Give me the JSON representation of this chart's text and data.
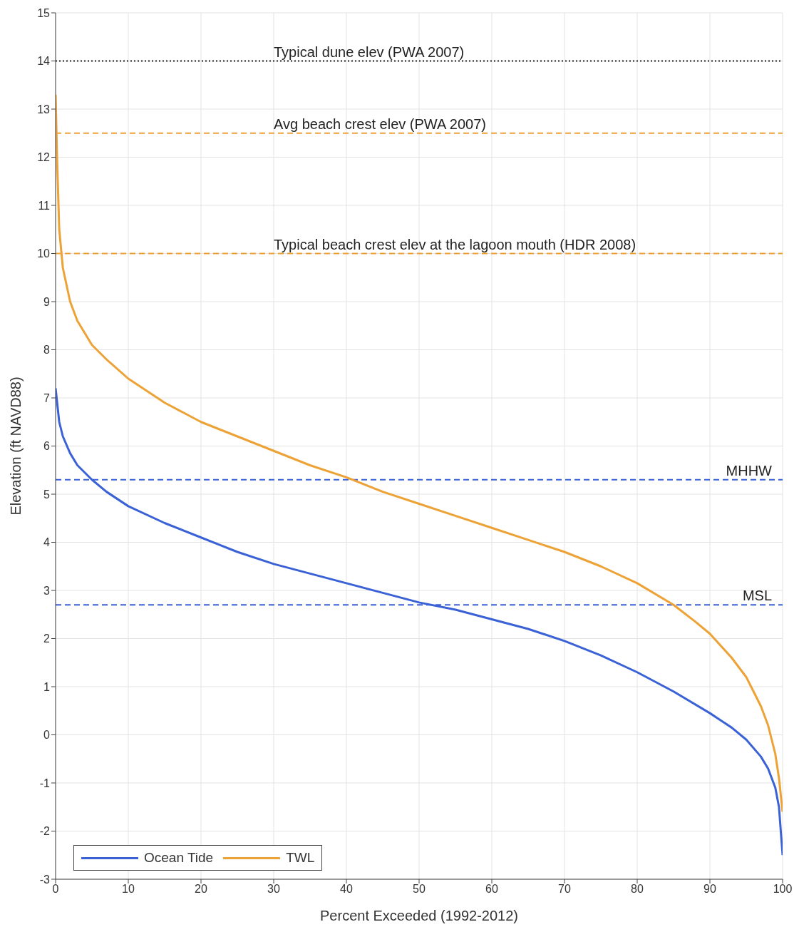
{
  "chart_data": {
    "type": "line",
    "xlabel": "Percent Exceeded (1992-2012)",
    "ylabel": "Elevation (ft NAVD88)",
    "xlim": [
      0,
      100
    ],
    "xticks": [
      0,
      10,
      20,
      30,
      40,
      50,
      60,
      70,
      80,
      90,
      100
    ],
    "ylim": [
      -3,
      15
    ],
    "yticks": [
      -3,
      -2,
      -1,
      0,
      1,
      2,
      3,
      4,
      5,
      6,
      7,
      8,
      9,
      10,
      11,
      12,
      13,
      14,
      15
    ],
    "grid": true,
    "legend": "bottom left",
    "marker": "none",
    "line_style": "solid",
    "series": [
      {
        "name": "Ocean Tide",
        "color": "#3a62d6",
        "x": [
          0,
          0.5,
          1,
          2,
          3,
          5,
          7,
          10,
          15,
          20,
          25,
          30,
          35,
          40,
          45,
          50,
          55,
          60,
          65,
          70,
          75,
          80,
          85,
          90,
          93,
          95,
          97,
          98,
          99,
          99.5,
          100
        ],
        "values": [
          7.2,
          6.5,
          6.2,
          5.85,
          5.6,
          5.3,
          5.05,
          4.75,
          4.4,
          4.1,
          3.8,
          3.55,
          3.35,
          3.15,
          2.95,
          2.75,
          2.6,
          2.4,
          2.2,
          1.95,
          1.65,
          1.3,
          0.9,
          0.45,
          0.15,
          -0.1,
          -0.45,
          -0.7,
          -1.1,
          -1.5,
          -2.5
        ]
      },
      {
        "name": "TWL",
        "color": "#eda236",
        "x": [
          0,
          0.2,
          0.5,
          1,
          2,
          3,
          5,
          7,
          10,
          15,
          20,
          25,
          30,
          35,
          40,
          45,
          50,
          55,
          60,
          65,
          70,
          75,
          80,
          85,
          88,
          90,
          93,
          95,
          97,
          98,
          99,
          99.5,
          100
        ],
        "values": [
          13.3,
          12,
          10.5,
          9.7,
          9.0,
          8.6,
          8.1,
          7.8,
          7.4,
          6.9,
          6.5,
          6.2,
          5.9,
          5.6,
          5.35,
          5.05,
          4.8,
          4.55,
          4.3,
          4.05,
          3.8,
          3.5,
          3.15,
          2.7,
          2.35,
          2.1,
          1.6,
          1.2,
          0.6,
          0.2,
          -0.4,
          -0.9,
          -1.6
        ]
      }
    ],
    "ref_lines": [
      {
        "axis": "y",
        "value": 14,
        "label": "Typical dune elev (PWA 2007)",
        "color": "#222222",
        "line_style": "dotted"
      },
      {
        "axis": "y",
        "value": 12.5,
        "label": "Avg beach crest elev (PWA 2007)",
        "color": "#eda236",
        "line_style": "dashed"
      },
      {
        "axis": "y",
        "value": 10,
        "label": "Typical beach crest elev at the lagoon mouth (HDR 2008)",
        "color": "#eda236",
        "line_style": "dashed"
      },
      {
        "axis": "y",
        "value": 5.3,
        "label": "MHHW",
        "color": "#3a62d6",
        "line_style": "dashed"
      },
      {
        "axis": "y",
        "value": 2.7,
        "label": "MSL",
        "color": "#3a62d6",
        "line_style": "dashed"
      }
    ]
  }
}
